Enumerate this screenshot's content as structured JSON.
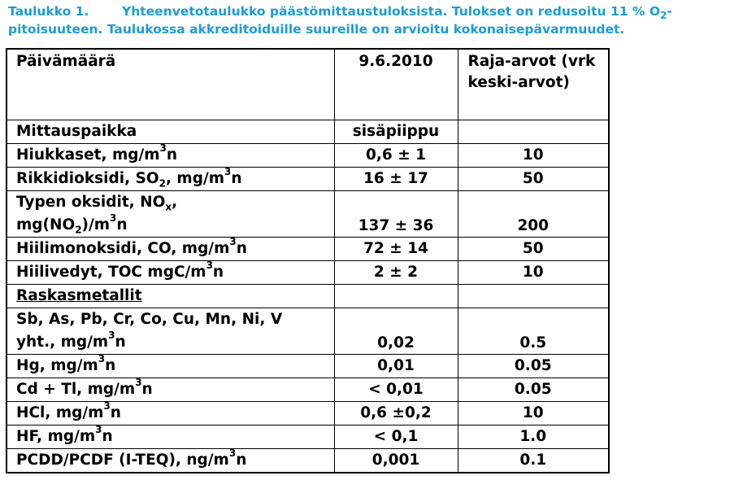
{
  "caption": {
    "number": "Taulukko 1.",
    "text_1": "Yhteenvetotaulukko päästömittaustuloksista. Tulokset on redusoitu 11 % O",
    "sub": "2",
    "text_2": "-pitoisuuteen. Taulukossa akkreditoiduille suureille on arvioitu kokonaisepävarmuudet."
  },
  "header": {
    "date_label": "Päivämäärä",
    "date": "9.6.2010",
    "limit_label": "Raja-arvot (vrk keski-arvot)"
  },
  "rows": [
    {
      "pre": "Mittauspaikka",
      "value": "sisäpiippu",
      "limit": ""
    },
    {
      "pre": "Hiukkaset, mg/m",
      "sup": "3",
      "post": "n",
      "value": "0,6 ± 1",
      "limit": "10"
    },
    {
      "pre": "Rikkidioksidi, SO",
      "sub": "2",
      "mid": ", mg/m",
      "sup": "3",
      "post": "n",
      "value": "16 ± 17",
      "limit": "50"
    },
    {
      "pre": "Typen oksidit, NO",
      "sub": "x",
      "post": ",",
      "value": "",
      "limit": ""
    },
    {
      "pre": "mg(NO",
      "sub": "2",
      "mid": ")/m",
      "sup": "3",
      "post": "n",
      "value": "137 ± 36",
      "limit": "200"
    },
    {
      "pre": "Hiilimonoksidi, CO, mg/m",
      "sup": "3",
      "post": "n",
      "value": "72 ± 14",
      "limit": "50"
    },
    {
      "pre": "Hiilivedyt, TOC mgC/m",
      "sup": "3",
      "post": "n",
      "value": "2 ± 2",
      "limit": "10"
    },
    {
      "pre": "Raskasmetallit",
      "value": "",
      "limit": ""
    },
    {
      "pre": "Sb, As, Pb, Cr, Co, Cu, Mn, Ni, V",
      "value": "",
      "limit": ""
    },
    {
      "pre": "yht., mg/m",
      "sup": "3",
      "post": "n",
      "value": "0,02",
      "limit": "0.5"
    },
    {
      "pre": "Hg, mg/m",
      "sup": "3",
      "post": "n",
      "value": "0,01",
      "limit": "0.05"
    },
    {
      "pre": "Cd + Tl,  mg/m",
      "sup": "3",
      "post": "n",
      "value": "< 0,01",
      "limit": "0.05"
    },
    {
      "pre": "HCl, mg/m",
      "sup": "3",
      "post": "n",
      "value": "0,6 ±0,2",
      "limit": "10"
    },
    {
      "pre": "HF, mg/m",
      "sup": "3",
      "post": "n",
      "value": "< 0,1",
      "limit": "1.0"
    },
    {
      "pre": "PCDD/PCDF (I-TEQ), ng/m",
      "sup": "3",
      "post": "n",
      "value": "0,001",
      "limit": "0.1"
    }
  ]
}
